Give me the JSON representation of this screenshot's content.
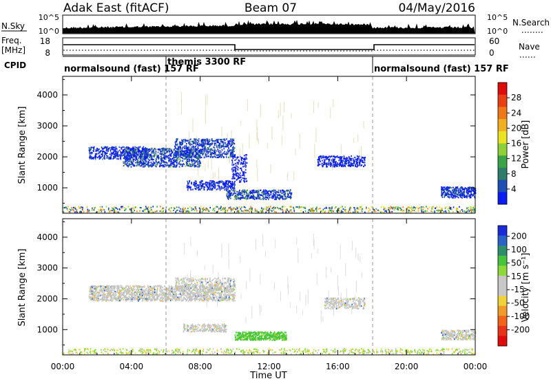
{
  "header": {
    "title": "Adak East (fitACF)",
    "beam": "Beam 07",
    "date": "04/May/2016"
  },
  "sky_panel": {
    "left_label": "N.Sky",
    "right_label": "N.Search",
    "left_ticks": [
      "10^5",
      "10^0"
    ],
    "right_ticks": [
      "10^5",
      "10^0"
    ]
  },
  "freq_panel": {
    "left_label_1": "Freq.",
    "left_label_2": "[MHz]",
    "right_label": "Nave",
    "left_ticks": [
      "18",
      "8"
    ],
    "right_ticks": [
      "60",
      "0"
    ]
  },
  "cpid_panel": {
    "label": "CPID",
    "segments": [
      {
        "name": "normalsound (fast) 157 RF",
        "start": 0,
        "end": 6
      },
      {
        "name": "themis 3300 RF",
        "start": 6,
        "end": 18
      },
      {
        "name": "normalsound (fast) 157 RF",
        "start": 18,
        "end": 24
      }
    ]
  },
  "chart_data": [
    {
      "type": "heatmap",
      "name": "power",
      "ylabel": "Slant Range [km]",
      "ylim": [
        180,
        4600
      ],
      "yticks": [
        1000,
        2000,
        3000,
        4000
      ],
      "colorbar_label": "Power [dB]",
      "colorbar_ticks": [
        4,
        8,
        12,
        16,
        20,
        24,
        28
      ],
      "colorbar_range": [
        0,
        32
      ],
      "colorbar_colors": [
        "#0b1cf0",
        "#1f4fb5",
        "#2e7d6a",
        "#3aa347",
        "#8fcf3a",
        "#e9e323",
        "#f0b020",
        "#f07818",
        "#e84012",
        "#e00c0c"
      ]
    },
    {
      "type": "heatmap",
      "name": "velocity",
      "ylabel": "Slant Range [km]",
      "ylim": [
        180,
        4600
      ],
      "yticks": [
        1000,
        2000,
        3000,
        4000
      ],
      "colorbar_label": "Velocity [m s⁻¹]",
      "colorbar_ticks": [
        200,
        100,
        50,
        15,
        -15,
        -50,
        -100,
        -200
      ],
      "colorbar_colors": [
        "#1a2bd8",
        "#2a62c8",
        "#2e8f6a",
        "#46c53c",
        "#8fd83a",
        "#c8c8c8",
        "#c8c8c8",
        "#f0d23a",
        "#f09a2a",
        "#f0641c",
        "#e8321a",
        "#e00c0c"
      ]
    }
  ],
  "xaxis": {
    "label": "Time UT",
    "xlim": [
      0,
      24
    ],
    "ticks": [
      "00:00",
      "04:00",
      "08:00",
      "12:00",
      "16:00",
      "20:00",
      "00:00"
    ]
  },
  "colors": {
    "grid_dashed": "#999999",
    "ground_scatter": "#b0b0b0"
  }
}
